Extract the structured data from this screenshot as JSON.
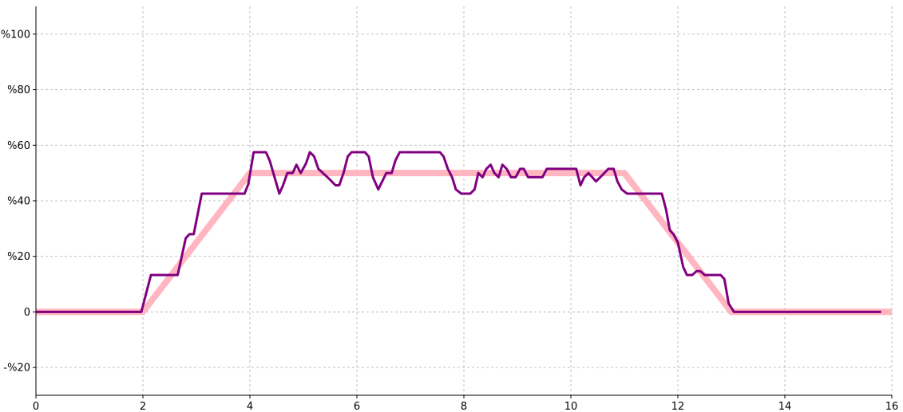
{
  "chart_data": {
    "type": "line",
    "title": "",
    "xlabel": "",
    "ylabel": "",
    "xlim": [
      0,
      16
    ],
    "ylim": [
      -30,
      110
    ],
    "grid": true,
    "legend": "none",
    "x_ticks": [
      {
        "value": 0,
        "label": "0"
      },
      {
        "value": 2,
        "label": "2"
      },
      {
        "value": 4,
        "label": "4"
      },
      {
        "value": 6,
        "label": "6"
      },
      {
        "value": 8,
        "label": "8"
      },
      {
        "value": 10,
        "label": "10"
      },
      {
        "value": 12,
        "label": "12"
      },
      {
        "value": 14,
        "label": "14"
      },
      {
        "value": 16,
        "label": "16"
      }
    ],
    "y_ticks": [
      {
        "value": -20,
        "label": "-%20"
      },
      {
        "value": 0,
        "label": "0"
      },
      {
        "value": 20,
        "label": "%20"
      },
      {
        "value": 40,
        "label": "%40"
      },
      {
        "value": 60,
        "label": "%60"
      },
      {
        "value": 80,
        "label": "%80"
      },
      {
        "value": 100,
        "label": "%100"
      }
    ],
    "series": [
      {
        "color": "#ffb6c1",
        "points": [
          [
            0,
            0
          ],
          [
            2,
            0
          ],
          [
            4,
            50
          ],
          [
            11,
            50
          ],
          [
            13,
            0
          ],
          [
            16,
            0
          ]
        ]
      },
      {
        "color": "#800080",
        "points": [
          [
            0,
            0
          ],
          [
            1.97,
            0
          ],
          [
            2.15,
            13.3
          ],
          [
            2.65,
            13.3
          ],
          [
            2.8,
            26.5
          ],
          [
            2.87,
            28
          ],
          [
            2.95,
            28
          ],
          [
            3.1,
            42.6
          ],
          [
            3.9,
            42.6
          ],
          [
            3.97,
            46
          ],
          [
            4.07,
            57.5
          ],
          [
            4.3,
            57.5
          ],
          [
            4.37,
            54.5
          ],
          [
            4.55,
            42.6
          ],
          [
            4.62,
            45.6
          ],
          [
            4.7,
            50
          ],
          [
            4.8,
            50
          ],
          [
            4.87,
            53
          ],
          [
            4.95,
            50
          ],
          [
            5.05,
            53.5
          ],
          [
            5.12,
            57.5
          ],
          [
            5.2,
            56
          ],
          [
            5.28,
            51.5
          ],
          [
            5.45,
            48.5
          ],
          [
            5.6,
            45.6
          ],
          [
            5.67,
            45.6
          ],
          [
            5.75,
            50
          ],
          [
            5.83,
            56
          ],
          [
            5.9,
            57.5
          ],
          [
            6.15,
            57.5
          ],
          [
            6.22,
            56
          ],
          [
            6.3,
            48.5
          ],
          [
            6.4,
            44.1
          ],
          [
            6.55,
            50
          ],
          [
            6.65,
            50
          ],
          [
            6.72,
            54.5
          ],
          [
            6.8,
            57.5
          ],
          [
            7.55,
            57.5
          ],
          [
            7.62,
            56
          ],
          [
            7.7,
            51.5
          ],
          [
            7.78,
            48.5
          ],
          [
            7.85,
            44.1
          ],
          [
            7.95,
            42.6
          ],
          [
            8.12,
            42.6
          ],
          [
            8.2,
            44.1
          ],
          [
            8.27,
            50
          ],
          [
            8.35,
            48.5
          ],
          [
            8.42,
            51.5
          ],
          [
            8.5,
            53
          ],
          [
            8.57,
            50
          ],
          [
            8.65,
            48.5
          ],
          [
            8.72,
            53
          ],
          [
            8.8,
            51.5
          ],
          [
            8.88,
            48.5
          ],
          [
            8.97,
            48.5
          ],
          [
            9.05,
            51.5
          ],
          [
            9.12,
            51.5
          ],
          [
            9.2,
            48.5
          ],
          [
            9.47,
            48.5
          ],
          [
            9.55,
            51.5
          ],
          [
            10.1,
            51.5
          ],
          [
            10.18,
            45.6
          ],
          [
            10.25,
            48.5
          ],
          [
            10.33,
            50
          ],
          [
            10.4,
            48.5
          ],
          [
            10.47,
            47
          ],
          [
            10.55,
            48.5
          ],
          [
            10.7,
            51.5
          ],
          [
            10.8,
            51.5
          ],
          [
            10.87,
            47
          ],
          [
            10.95,
            44.1
          ],
          [
            11.05,
            42.6
          ],
          [
            11.7,
            42.6
          ],
          [
            11.78,
            36.8
          ],
          [
            11.85,
            29.4
          ],
          [
            11.92,
            27.9
          ],
          [
            12,
            25
          ],
          [
            12.05,
            20.6
          ],
          [
            12.1,
            16.2
          ],
          [
            12.17,
            13.3
          ],
          [
            12.27,
            13.3
          ],
          [
            12.35,
            14.7
          ],
          [
            12.42,
            14.7
          ],
          [
            12.5,
            13.3
          ],
          [
            12.8,
            13.3
          ],
          [
            12.87,
            11.8
          ],
          [
            12.95,
            3
          ],
          [
            13.05,
            0
          ],
          [
            15.8,
            0
          ]
        ]
      }
    ]
  }
}
